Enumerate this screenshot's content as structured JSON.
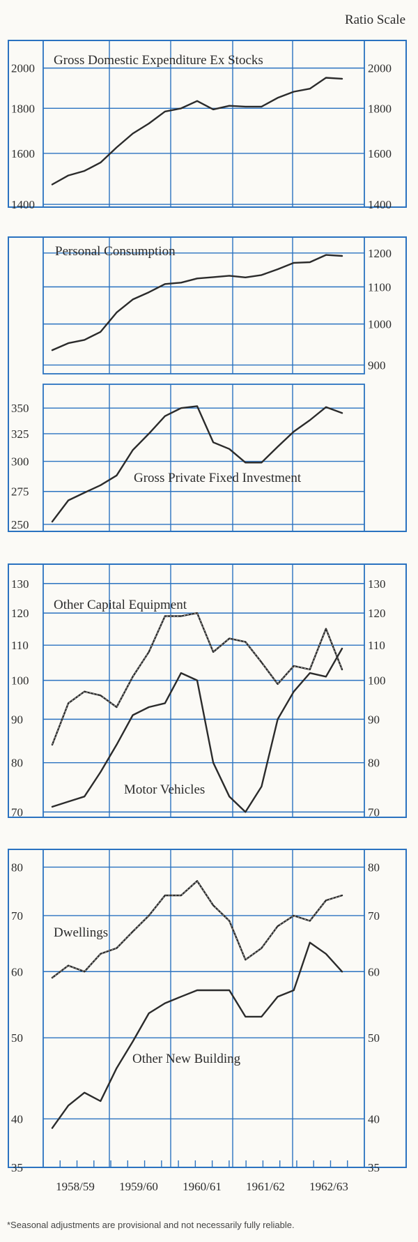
{
  "scale_note": "Ratio Scale",
  "footnote": "*Seasonal adjustments are provisional and not necessarily fully reliable.",
  "colors": {
    "grid": "#2a72c0",
    "line": "#2b2b2b",
    "paper": "#fbfaf6"
  },
  "chart_data": [
    {
      "type": "line",
      "title": "Gross Domestic Expenditure Ex Stocks",
      "scale": "log",
      "ylim": [
        1390,
        2150
      ],
      "left_ticks": [
        1400,
        1600,
        1800,
        2000
      ],
      "right_ticks": [
        1400,
        1600,
        1800,
        2000
      ],
      "series": [
        {
          "name": "Gross Domestic Expenditure Ex Stocks",
          "values": [
            1475,
            1510,
            1528,
            1562,
            1625,
            1685,
            1730,
            1785,
            1800,
            1835,
            1795,
            1812,
            1808,
            1808,
            1850,
            1880,
            1895,
            1950,
            1945
          ]
        }
      ]
    },
    {
      "type": "line",
      "title": "Personal Consumption",
      "scale": "log",
      "ylim": [
        880,
        1250
      ],
      "left_ticks": [],
      "right_ticks": [
        900,
        1000,
        1100,
        1200
      ],
      "series": [
        {
          "name": "Personal Consumption",
          "values": [
            935,
            952,
            960,
            980,
            1030,
            1065,
            1085,
            1108,
            1112,
            1124,
            1128,
            1132,
            1127,
            1134,
            1151,
            1170,
            1172,
            1194,
            1191
          ]
        }
      ]
    },
    {
      "type": "line",
      "title": "Gross Private Fixed Investment",
      "scale": "log",
      "ylim": [
        245,
        375
      ],
      "left_ticks": [
        250,
        275,
        300,
        325,
        350
      ],
      "right_ticks": [],
      "series": [
        {
          "name": "Gross Private Fixed Investment",
          "values": [
            252,
            268,
            274,
            280,
            288,
            310,
            325,
            342,
            350,
            352,
            317,
            311,
            299,
            299,
            313,
            327,
            338,
            351,
            345
          ]
        }
      ]
    },
    {
      "type": "line",
      "title": "Other Capital Equipment",
      "scale": "log",
      "ylim": [
        69,
        137
      ],
      "left_ticks": [
        70,
        80,
        90,
        100,
        110,
        120,
        130
      ],
      "right_ticks": [
        70,
        80,
        90,
        100,
        110,
        120,
        130
      ],
      "series": [
        {
          "name": "Other Capital Equipment",
          "dashed": true,
          "values": [
            84,
            94,
            97,
            96,
            93,
            101,
            108,
            119,
            119,
            120,
            108,
            112,
            111,
            105,
            99,
            104,
            103,
            115,
            103
          ]
        },
        {
          "name": "Motor Vehicles",
          "values": [
            71,
            72,
            73,
            78,
            84,
            91,
            93,
            94,
            102,
            100,
            80,
            73,
            70,
            75,
            90,
            97,
            102,
            101,
            109
          ]
        }
      ]
    },
    {
      "type": "line",
      "title": "Dwellings",
      "scale": "log",
      "ylim": [
        35,
        84
      ],
      "left_ticks": [
        35,
        40,
        50,
        60,
        70,
        80
      ],
      "right_ticks": [
        35,
        40,
        50,
        60,
        70,
        80
      ],
      "x_labels": [
        "1958/59",
        "1959/60",
        "1960/61",
        "1961/62",
        "1962/63"
      ],
      "series": [
        {
          "name": "Dwellings",
          "dashed": true,
          "values": [
            59,
            61,
            60,
            63,
            64,
            67,
            70,
            74,
            74,
            77,
            72,
            69,
            62,
            64,
            68,
            70,
            69,
            73,
            74
          ]
        },
        {
          "name": "Other New Building",
          "values": [
            39,
            41.5,
            43,
            42,
            46,
            49.5,
            53.5,
            55,
            56,
            57,
            57,
            57,
            53,
            53,
            56,
            57,
            65,
            63,
            60
          ]
        }
      ]
    }
  ]
}
